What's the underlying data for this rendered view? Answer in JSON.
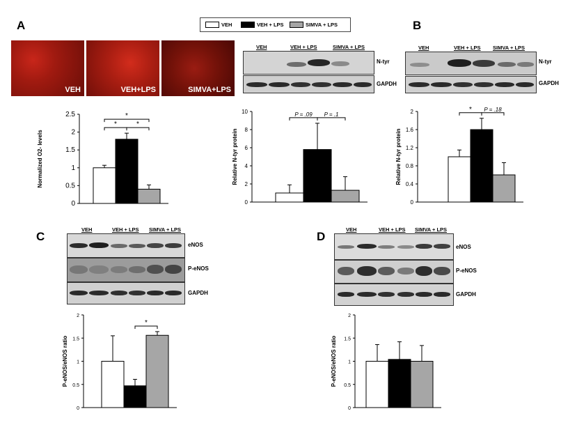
{
  "legend": {
    "items": [
      {
        "label": "VEH",
        "color": "#ffffff"
      },
      {
        "label": "VEH + LPS",
        "color": "#000000"
      },
      {
        "label": "SIMVA + LPS",
        "color": "#a6a6a6"
      }
    ]
  },
  "panels": {
    "a": {
      "letter": "A",
      "images": [
        "VEH",
        "VEH+LPS",
        "SIMVA+LPS"
      ]
    },
    "b": {
      "letter": "B"
    },
    "c": {
      "letter": "C"
    },
    "d": {
      "letter": "D"
    }
  },
  "blots": {
    "ntyr_a": {
      "lanes": [
        "VEH",
        "VEH + LPS",
        "SIMVA + LPS"
      ],
      "rows": [
        "N-tyr",
        "GAPDH"
      ]
    },
    "ntyr_b": {
      "lanes": [
        "VEH",
        "VEH + LPS",
        "SIMVA + LPS"
      ],
      "rows": [
        "N-tyr",
        "GAPDH"
      ]
    },
    "enos_c": {
      "lanes": [
        "VEH",
        "VEH + LPS",
        "SIMVA + LPS"
      ],
      "rows": [
        "eNOS",
        "P-eNOS",
        "GAPDH"
      ]
    },
    "enos_d": {
      "lanes": [
        "VEH",
        "VEH + LPS",
        "SIMVA + LPS"
      ],
      "rows": [
        "eNOS",
        "P-eNOS",
        "GAPDH"
      ]
    }
  },
  "chart_data": [
    {
      "type": "bar",
      "panel": "A",
      "categories": [
        "VEH",
        "VEH + LPS",
        "SIMVA + LPS"
      ],
      "values": [
        1.0,
        1.8,
        0.4
      ],
      "errors": [
        0.07,
        0.17,
        0.12
      ],
      "colors": [
        "#ffffff",
        "#000000",
        "#a6a6a6"
      ],
      "ylabel": "Normalized O2- levels",
      "ylim": [
        0,
        2.5
      ],
      "yticks": [
        "0",
        "0.5",
        "1",
        "1.5",
        "2",
        "2.5"
      ],
      "annotations": [
        {
          "from": 0,
          "to": 1,
          "text": "*"
        },
        {
          "from": 1,
          "to": 2,
          "text": "*"
        },
        {
          "from": 0,
          "to": 2,
          "text": "*"
        }
      ]
    },
    {
      "type": "bar",
      "panel": "A-N-tyr",
      "categories": [
        "VEH",
        "VEH + LPS",
        "SIMVA + LPS"
      ],
      "values": [
        1.0,
        5.8,
        1.3
      ],
      "errors": [
        0.9,
        2.9,
        1.5
      ],
      "colors": [
        "#ffffff",
        "#000000",
        "#a6a6a6"
      ],
      "ylabel": "Relative N-tyr  protein",
      "ylim": [
        0,
        10
      ],
      "yticks": [
        "0",
        "2",
        "4",
        "6",
        "8",
        "10"
      ],
      "annotations": [
        {
          "from": 0,
          "to": 1,
          "text": "P = .09"
        },
        {
          "from": 1,
          "to": 2,
          "text": "P = .1"
        }
      ]
    },
    {
      "type": "bar",
      "panel": "B",
      "categories": [
        "VEH",
        "VEH + LPS",
        "SIMVA + LPS"
      ],
      "values": [
        1.0,
        1.6,
        0.6
      ],
      "errors": [
        0.15,
        0.25,
        0.27
      ],
      "colors": [
        "#ffffff",
        "#000000",
        "#a6a6a6"
      ],
      "ylabel": "Relative N-tyr  protein",
      "ylim": [
        0,
        2
      ],
      "yticks": [
        "0",
        "0.4",
        "0.8",
        "1.2",
        "1.6",
        "2"
      ],
      "annotations": [
        {
          "from": 0,
          "to": 1,
          "text": "*"
        },
        {
          "from": 1,
          "to": 2,
          "text": "P = .18"
        }
      ]
    },
    {
      "type": "bar",
      "panel": "C",
      "categories": [
        "VEH",
        "VEH + LPS",
        "SIMVA + LPS"
      ],
      "values": [
        1.0,
        0.47,
        1.56
      ],
      "errors": [
        0.55,
        0.14,
        0.08
      ],
      "colors": [
        "#ffffff",
        "#000000",
        "#a6a6a6"
      ],
      "ylabel": "P-eNOS/eNOS ratio",
      "ylim": [
        0,
        2
      ],
      "yticks": [
        "0",
        "0.5",
        "1",
        "1.5",
        "2"
      ],
      "annotations": [
        {
          "from": 1,
          "to": 2,
          "text": "*"
        }
      ]
    },
    {
      "type": "bar",
      "panel": "D",
      "categories": [
        "VEH",
        "VEH + LPS",
        "SIMVA + LPS"
      ],
      "values": [
        1.0,
        1.04,
        1.0
      ],
      "errors": [
        0.36,
        0.38,
        0.34
      ],
      "colors": [
        "#ffffff",
        "#000000",
        "#a6a6a6"
      ],
      "ylabel": "P-eNOS/eNOS ratio",
      "ylim": [
        0,
        2
      ],
      "yticks": [
        "0",
        "0.5",
        "1",
        "1.5",
        "2"
      ],
      "annotations": []
    }
  ]
}
